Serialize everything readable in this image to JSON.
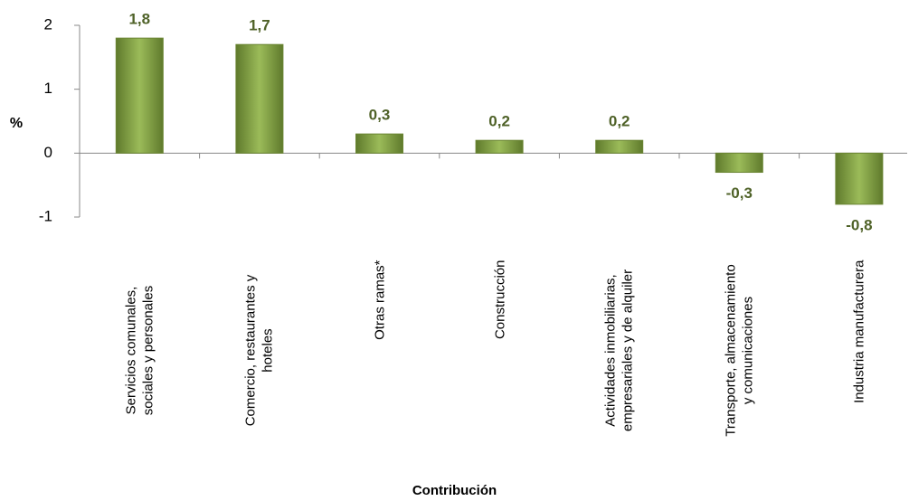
{
  "chart_data": {
    "type": "bar",
    "x_label": "Contribución",
    "y_label": "%",
    "categories": [
      "Servicios comunales, sociales y personales",
      "Comercio, restaurantes y hoteles",
      "Otras ramas*",
      "Construcción",
      "Actividades inmobiliarias, empresariales y de alquiler",
      "Transporte, almacenamiento y comunicaciones",
      "Industria manufacturera"
    ],
    "values": [
      1.8,
      1.7,
      0.3,
      0.2,
      0.2,
      -0.3,
      -0.8
    ],
    "value_labels": [
      "1,8",
      "1,7",
      "0,3",
      "0,2",
      "0,2",
      "-0,3",
      "-0,8"
    ],
    "color": "#77933c",
    "ylim": [
      -1,
      2
    ],
    "yticks": [
      -1,
      0,
      1,
      2
    ]
  }
}
